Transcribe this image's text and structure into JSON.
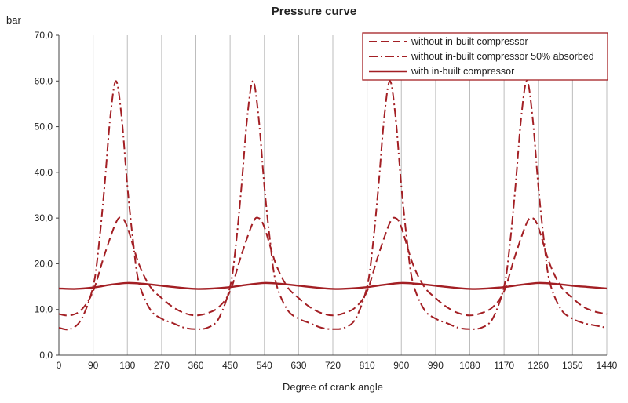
{
  "chart_data": {
    "type": "line",
    "title": "Pressure curve",
    "ylabel": "bar",
    "xlabel": "Degree of crank angle",
    "xlim": [
      0,
      1440
    ],
    "ylim": [
      0,
      70
    ],
    "x_ticks": [
      "0",
      "90",
      "180",
      "270",
      "360",
      "450",
      "540",
      "630",
      "720",
      "810",
      "900",
      "990",
      "1080",
      "1170",
      "1260",
      "1350",
      "1440"
    ],
    "y_ticks": [
      "0,0",
      "10,0",
      "20,0",
      "30,0",
      "40,0",
      "50,0",
      "60,0",
      "70,0"
    ],
    "grid": "vertical",
    "legend_position": "top-right",
    "line_color": "#a31f24",
    "series": [
      {
        "name": "without in-built compressor",
        "style": "dashed",
        "x": [
          0,
          30,
          60,
          90,
          120,
          150,
          165,
          180,
          210,
          240,
          270,
          300,
          330,
          360,
          390,
          420,
          450,
          480,
          510,
          525,
          540,
          570,
          600,
          630,
          660,
          690,
          720,
          750,
          780,
          810,
          840,
          870,
          885,
          900,
          930,
          960,
          990,
          1020,
          1050,
          1080,
          1110,
          1140,
          1170,
          1200,
          1230,
          1245,
          1260,
          1290,
          1320,
          1350,
          1380,
          1410,
          1440
        ],
        "y": [
          9.0,
          8.7,
          10.0,
          14.0,
          22.0,
          29.0,
          30.0,
          28.0,
          20.0,
          15.0,
          12.5,
          10.5,
          9.2,
          8.7,
          9.2,
          10.5,
          14.0,
          22.0,
          29.0,
          30.0,
          28.0,
          20.0,
          15.0,
          12.5,
          10.5,
          9.2,
          8.7,
          9.2,
          10.5,
          14.0,
          22.0,
          29.0,
          30.0,
          28.0,
          20.0,
          15.0,
          12.5,
          10.5,
          9.2,
          8.7,
          9.2,
          10.5,
          14.0,
          22.0,
          29.0,
          30.0,
          28.0,
          20.0,
          15.0,
          12.5,
          10.5,
          9.5,
          9.0
        ]
      },
      {
        "name": "without in-built compressor 50% absorbed",
        "style": "dashdot",
        "x": [
          0,
          30,
          60,
          90,
          105,
          120,
          135,
          150,
          165,
          180,
          195,
          210,
          240,
          270,
          300,
          330,
          360,
          390,
          420,
          450,
          465,
          480,
          495,
          510,
          525,
          540,
          555,
          570,
          600,
          630,
          660,
          690,
          720,
          750,
          780,
          810,
          825,
          840,
          855,
          870,
          885,
          900,
          915,
          930,
          960,
          990,
          1020,
          1050,
          1080,
          1110,
          1140,
          1170,
          1185,
          1200,
          1215,
          1230,
          1245,
          1260,
          1275,
          1290,
          1320,
          1350,
          1380,
          1410,
          1440
        ],
        "y": [
          6.0,
          5.7,
          8.0,
          15.0,
          24.0,
          37.0,
          52.0,
          60.0,
          52.0,
          37.0,
          25.0,
          16.0,
          10.0,
          8.0,
          7.0,
          6.0,
          5.7,
          6.0,
          8.0,
          15.0,
          24.0,
          37.0,
          52.0,
          60.0,
          52.0,
          37.0,
          25.0,
          16.0,
          10.0,
          8.0,
          7.0,
          6.0,
          5.7,
          6.0,
          8.0,
          15.0,
          24.0,
          37.0,
          52.0,
          60.0,
          52.0,
          37.0,
          25.0,
          16.0,
          10.0,
          8.0,
          7.0,
          6.0,
          5.7,
          6.0,
          8.0,
          15.0,
          24.0,
          37.0,
          52.0,
          60.0,
          52.0,
          37.0,
          25.0,
          16.0,
          10.0,
          8.0,
          7.0,
          6.5,
          6.0
        ]
      },
      {
        "name": "with in-built compressor",
        "style": "solid",
        "x": [
          0,
          45,
          90,
          135,
          180,
          225,
          270,
          315,
          360,
          405,
          450,
          495,
          540,
          585,
          630,
          675,
          720,
          765,
          810,
          855,
          900,
          945,
          990,
          1035,
          1080,
          1125,
          1170,
          1215,
          1260,
          1305,
          1350,
          1395,
          1440
        ],
        "y": [
          14.6,
          14.5,
          14.8,
          15.4,
          15.8,
          15.6,
          15.2,
          14.8,
          14.5,
          14.6,
          14.9,
          15.4,
          15.8,
          15.6,
          15.2,
          14.8,
          14.5,
          14.6,
          14.9,
          15.4,
          15.8,
          15.6,
          15.2,
          14.8,
          14.5,
          14.6,
          14.9,
          15.4,
          15.8,
          15.6,
          15.2,
          14.9,
          14.6
        ]
      }
    ]
  }
}
